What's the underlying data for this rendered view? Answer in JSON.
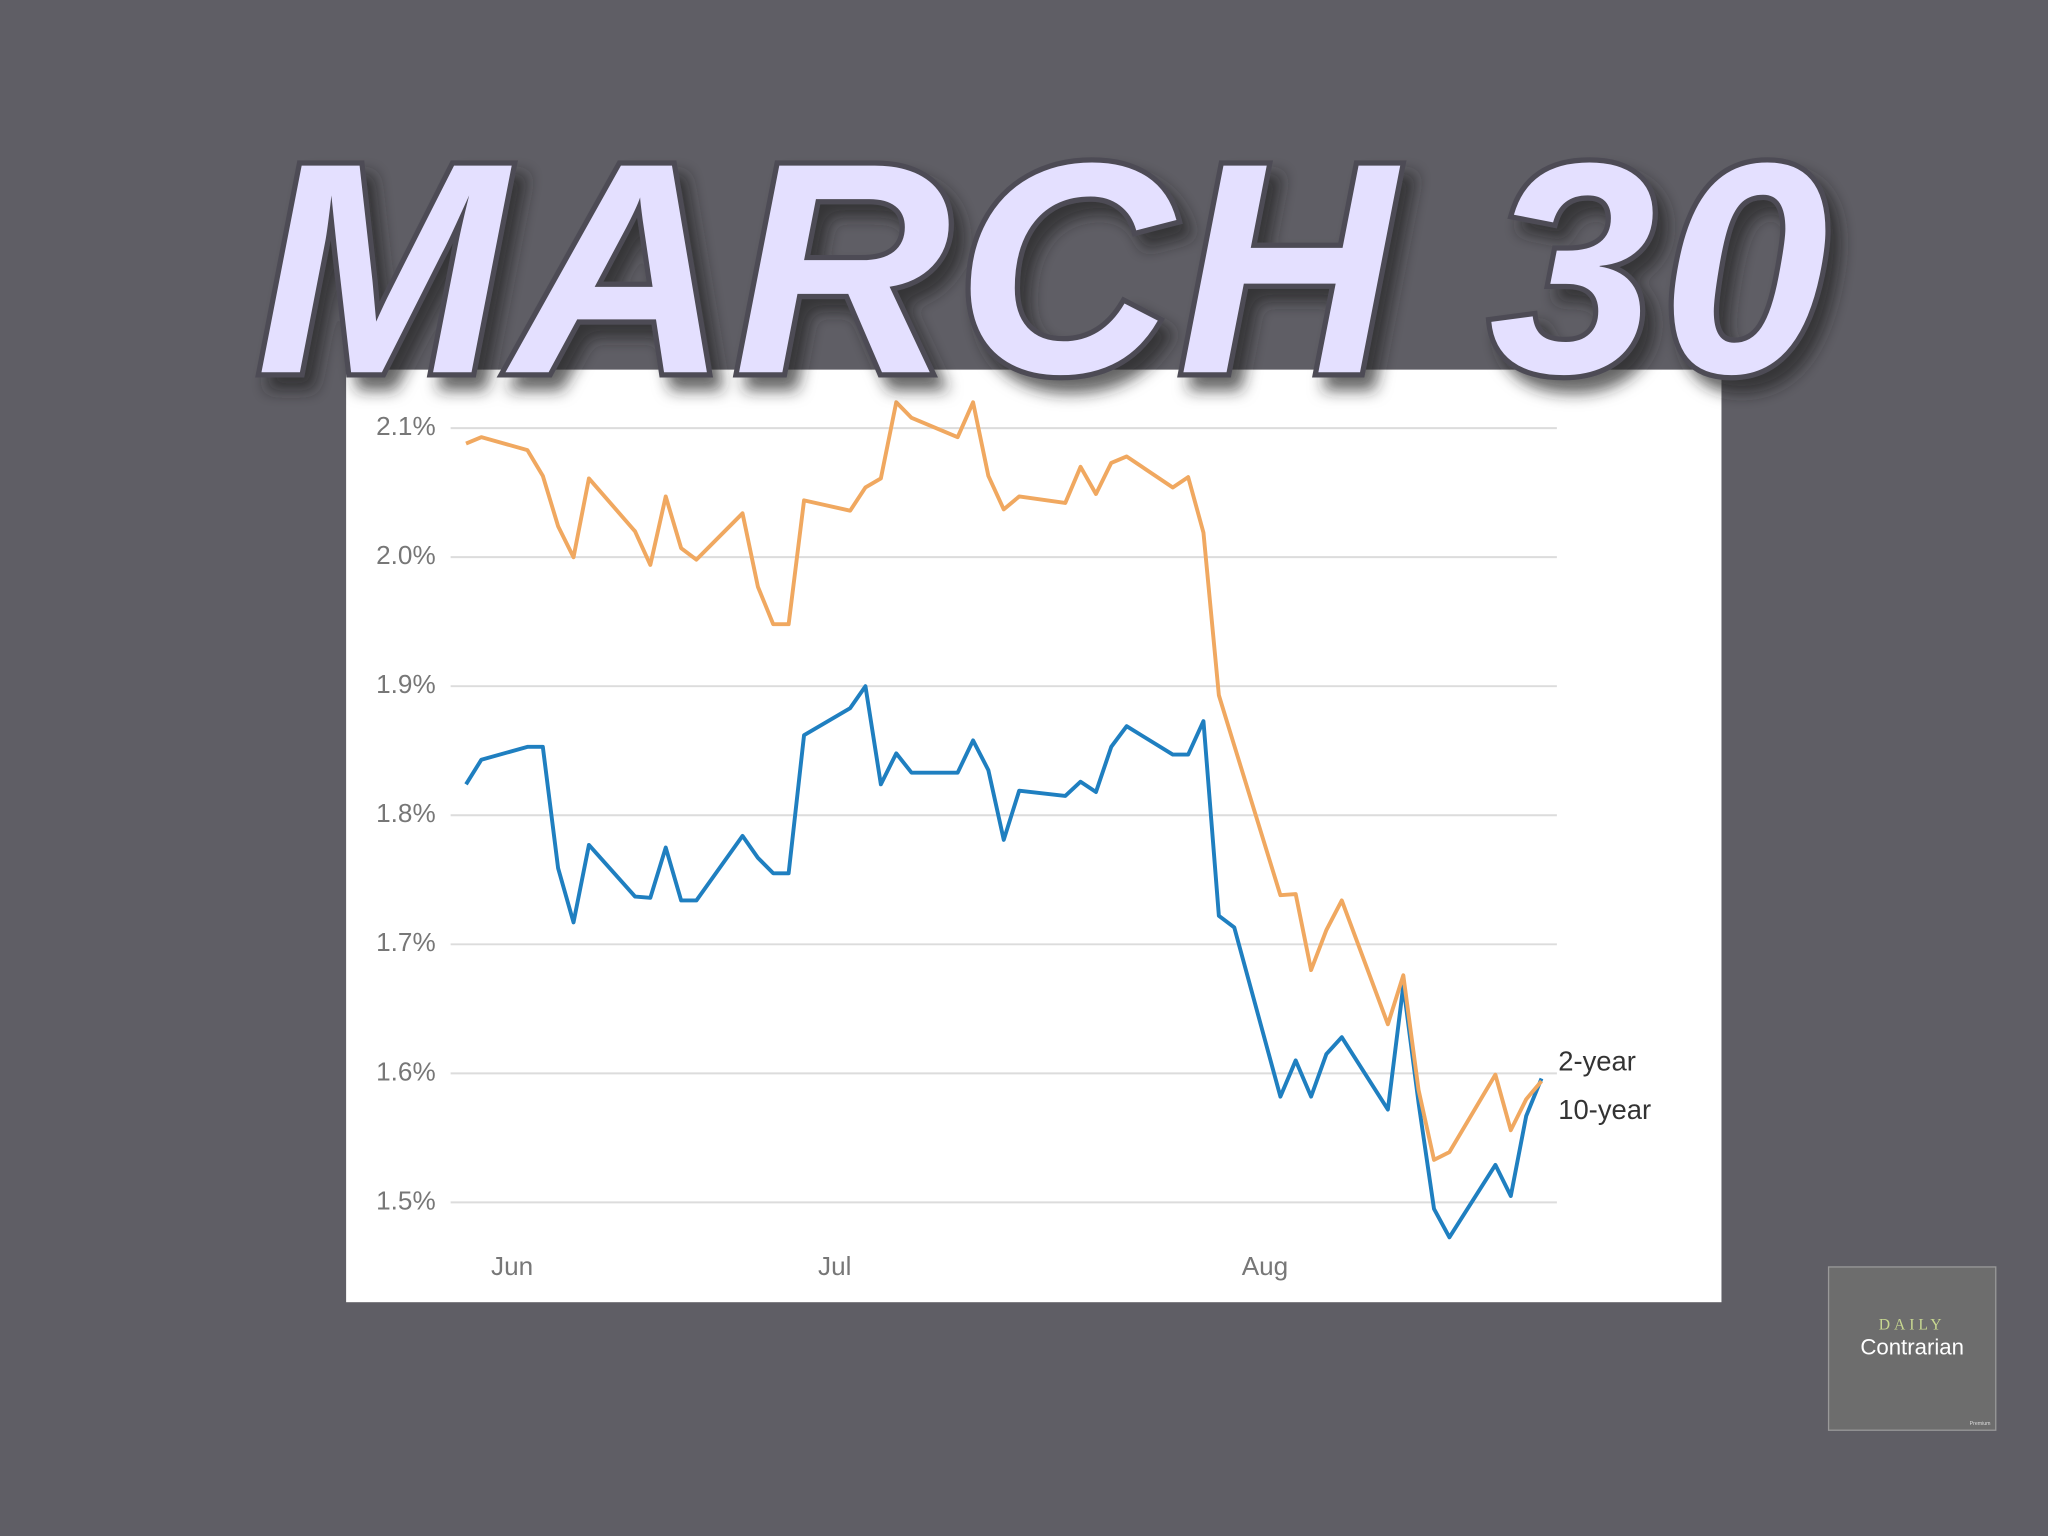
{
  "header": {
    "title": "MARCH 30"
  },
  "logo": {
    "line1": "DAILY",
    "line2": "Contrarian",
    "badge": "Premium"
  },
  "chart_data": {
    "type": "line",
    "x": [
      0,
      1,
      4,
      5,
      6,
      7,
      8,
      11,
      12,
      13,
      14,
      15,
      18,
      19,
      20,
      21,
      22,
      25,
      26,
      27,
      28,
      29,
      32,
      33,
      34,
      35,
      36,
      39,
      40,
      41,
      42,
      43,
      46,
      47,
      48,
      49,
      50,
      53,
      54,
      55,
      56,
      57,
      60,
      61,
      62,
      63,
      64,
      67,
      68,
      69,
      70
    ],
    "series": [
      {
        "name": "2-year",
        "color": "#1f7fc0",
        "values": [
          1.824,
          1.843,
          1.853,
          1.853,
          1.759,
          1.717,
          1.777,
          1.737,
          1.736,
          1.775,
          1.734,
          1.734,
          1.784,
          1.767,
          1.755,
          1.755,
          1.862,
          1.883,
          1.9,
          1.824,
          1.848,
          1.833,
          1.833,
          1.858,
          1.835,
          1.781,
          1.819,
          1.815,
          1.826,
          1.818,
          1.853,
          1.869,
          1.847,
          1.847,
          1.873,
          1.722,
          1.713,
          1.582,
          1.61,
          1.582,
          1.615,
          1.628,
          1.572,
          1.668,
          1.577,
          1.495,
          1.473,
          1.529,
          1.505,
          1.567,
          1.596
        ]
      },
      {
        "name": "10-year",
        "color": "#f0a860",
        "values": [
          2.088,
          2.093,
          2.083,
          2.063,
          2.024,
          2.0,
          2.061,
          2.02,
          1.994,
          2.047,
          2.007,
          1.998,
          2.034,
          1.977,
          1.948,
          1.948,
          2.044,
          2.036,
          2.054,
          2.061,
          2.12,
          2.108,
          2.093,
          2.12,
          2.063,
          2.037,
          2.047,
          2.042,
          2.07,
          2.049,
          2.073,
          2.078,
          2.054,
          2.062,
          2.019,
          1.893,
          1.854,
          1.738,
          1.739,
          1.68,
          1.711,
          1.734,
          1.638,
          1.676,
          1.587,
          1.533,
          1.539,
          1.599,
          1.556,
          1.58,
          1.594
        ]
      }
    ],
    "xlim": [
      -1,
      71
    ],
    "xticks": [
      {
        "value": 3,
        "label": "Jun"
      },
      {
        "value": 24,
        "label": "Jul"
      },
      {
        "value": 52,
        "label": "Aug"
      }
    ],
    "ylim": [
      1.45,
      2.12
    ],
    "yticks": [
      {
        "value": 1.5,
        "label": "1.5%"
      },
      {
        "value": 1.6,
        "label": "1.6%"
      },
      {
        "value": 1.7,
        "label": "1.7%"
      },
      {
        "value": 1.8,
        "label": "1.8%"
      },
      {
        "value": 1.9,
        "label": "1.9%"
      },
      {
        "value": 2.0,
        "label": "2.0%"
      },
      {
        "value": 2.1,
        "label": "2.1%"
      }
    ],
    "grid": true
  }
}
